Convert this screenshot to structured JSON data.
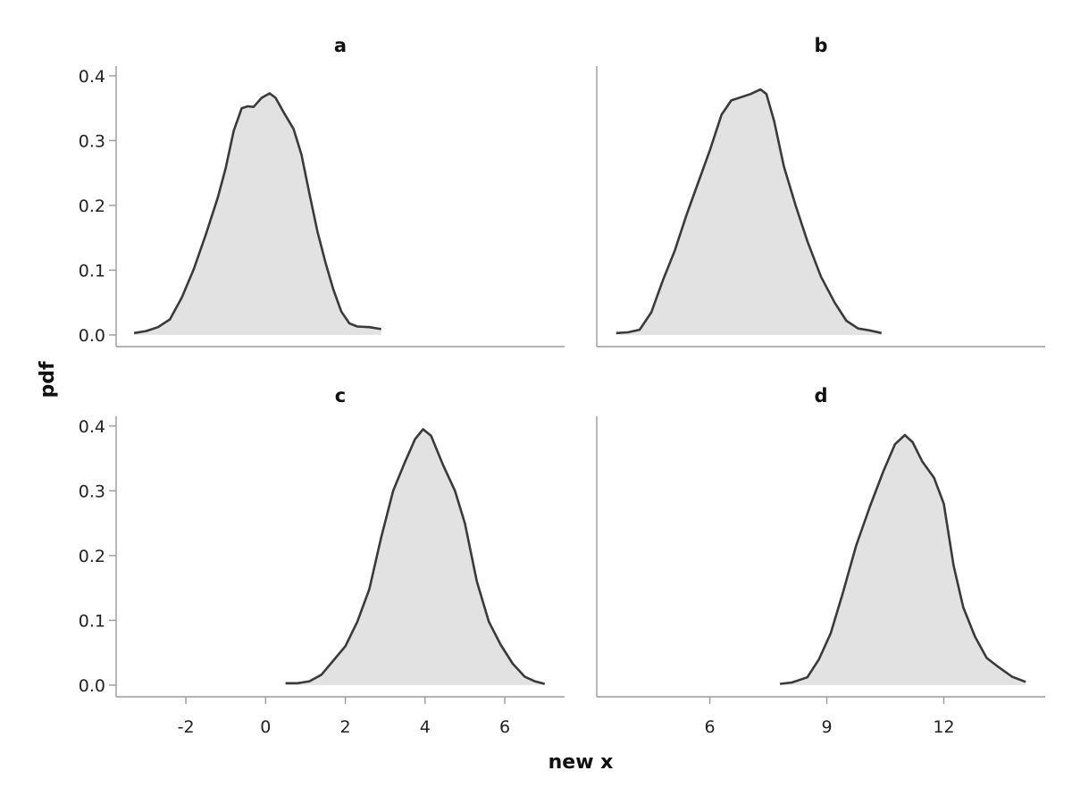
{
  "chart_data": {
    "type": "area",
    "xlabel": "new x",
    "ylabel": "pdf",
    "yticks": [
      "0.0",
      "0.1",
      "0.2",
      "0.3",
      "0.4"
    ],
    "grid": false,
    "legend": "none",
    "colors": {
      "fill": "#e2e2e2",
      "line": "#3a3a3a",
      "axis": "#9a9a9a"
    },
    "panels": [
      {
        "id": "a",
        "title": "a",
        "xlim": [
          -3.75,
          7.5
        ],
        "ylim": [
          -0.018,
          0.415
        ],
        "xticks": [],
        "points": [
          [
            -3.3,
            0.003
          ],
          [
            -3.0,
            0.006
          ],
          [
            -2.7,
            0.012
          ],
          [
            -2.4,
            0.024
          ],
          [
            -2.1,
            0.058
          ],
          [
            -1.8,
            0.102
          ],
          [
            -1.5,
            0.155
          ],
          [
            -1.2,
            0.212
          ],
          [
            -1.0,
            0.258
          ],
          [
            -0.8,
            0.315
          ],
          [
            -0.6,
            0.35
          ],
          [
            -0.45,
            0.353
          ],
          [
            -0.3,
            0.352
          ],
          [
            -0.1,
            0.366
          ],
          [
            0.1,
            0.373
          ],
          [
            0.25,
            0.366
          ],
          [
            0.45,
            0.344
          ],
          [
            0.7,
            0.318
          ],
          [
            0.9,
            0.278
          ],
          [
            1.1,
            0.218
          ],
          [
            1.3,
            0.16
          ],
          [
            1.5,
            0.112
          ],
          [
            1.7,
            0.07
          ],
          [
            1.9,
            0.036
          ],
          [
            2.1,
            0.018
          ],
          [
            2.3,
            0.013
          ],
          [
            2.6,
            0.012
          ],
          [
            2.9,
            0.009
          ]
        ]
      },
      {
        "id": "b",
        "title": "b",
        "xlim": [
          3.1,
          14.6
        ],
        "ylim": [
          -0.018,
          0.415
        ],
        "xticks": [],
        "points": [
          [
            3.6,
            0.003
          ],
          [
            3.9,
            0.004
          ],
          [
            4.2,
            0.008
          ],
          [
            4.5,
            0.035
          ],
          [
            4.8,
            0.085
          ],
          [
            5.1,
            0.13
          ],
          [
            5.4,
            0.185
          ],
          [
            5.7,
            0.235
          ],
          [
            6.0,
            0.285
          ],
          [
            6.3,
            0.34
          ],
          [
            6.55,
            0.362
          ],
          [
            6.8,
            0.367
          ],
          [
            7.05,
            0.372
          ],
          [
            7.3,
            0.379
          ],
          [
            7.45,
            0.372
          ],
          [
            7.65,
            0.33
          ],
          [
            7.9,
            0.26
          ],
          [
            8.2,
            0.2
          ],
          [
            8.5,
            0.145
          ],
          [
            8.85,
            0.09
          ],
          [
            9.2,
            0.05
          ],
          [
            9.5,
            0.022
          ],
          [
            9.8,
            0.01
          ],
          [
            10.1,
            0.007
          ],
          [
            10.4,
            0.003
          ]
        ]
      },
      {
        "id": "c",
        "title": "c",
        "xlim": [
          -3.75,
          7.5
        ],
        "ylim": [
          -0.018,
          0.415
        ],
        "xticks": [
          "-2",
          "0",
          "2",
          "4",
          "6"
        ],
        "points": [
          [
            0.5,
            0.003
          ],
          [
            0.8,
            0.003
          ],
          [
            1.1,
            0.006
          ],
          [
            1.4,
            0.016
          ],
          [
            1.7,
            0.038
          ],
          [
            2.0,
            0.06
          ],
          [
            2.3,
            0.098
          ],
          [
            2.6,
            0.148
          ],
          [
            2.9,
            0.228
          ],
          [
            3.2,
            0.3
          ],
          [
            3.5,
            0.345
          ],
          [
            3.75,
            0.38
          ],
          [
            3.95,
            0.395
          ],
          [
            4.15,
            0.385
          ],
          [
            4.45,
            0.34
          ],
          [
            4.75,
            0.3
          ],
          [
            5.0,
            0.25
          ],
          [
            5.3,
            0.16
          ],
          [
            5.6,
            0.098
          ],
          [
            5.9,
            0.062
          ],
          [
            6.2,
            0.033
          ],
          [
            6.5,
            0.013
          ],
          [
            6.75,
            0.006
          ],
          [
            7.0,
            0.002
          ]
        ]
      },
      {
        "id": "d",
        "title": "d",
        "xlim": [
          3.1,
          14.6
        ],
        "ylim": [
          -0.018,
          0.415
        ],
        "xticks": [
          "6",
          "9",
          "12"
        ],
        "points": [
          [
            7.8,
            0.002
          ],
          [
            8.1,
            0.004
          ],
          [
            8.5,
            0.012
          ],
          [
            8.8,
            0.04
          ],
          [
            9.1,
            0.08
          ],
          [
            9.4,
            0.14
          ],
          [
            9.75,
            0.215
          ],
          [
            10.1,
            0.275
          ],
          [
            10.45,
            0.33
          ],
          [
            10.75,
            0.372
          ],
          [
            11.0,
            0.386
          ],
          [
            11.2,
            0.375
          ],
          [
            11.45,
            0.345
          ],
          [
            11.75,
            0.32
          ],
          [
            12.0,
            0.28
          ],
          [
            12.25,
            0.185
          ],
          [
            12.5,
            0.12
          ],
          [
            12.8,
            0.075
          ],
          [
            13.1,
            0.042
          ],
          [
            13.4,
            0.028
          ],
          [
            13.75,
            0.013
          ],
          [
            14.1,
            0.005
          ]
        ]
      }
    ]
  }
}
